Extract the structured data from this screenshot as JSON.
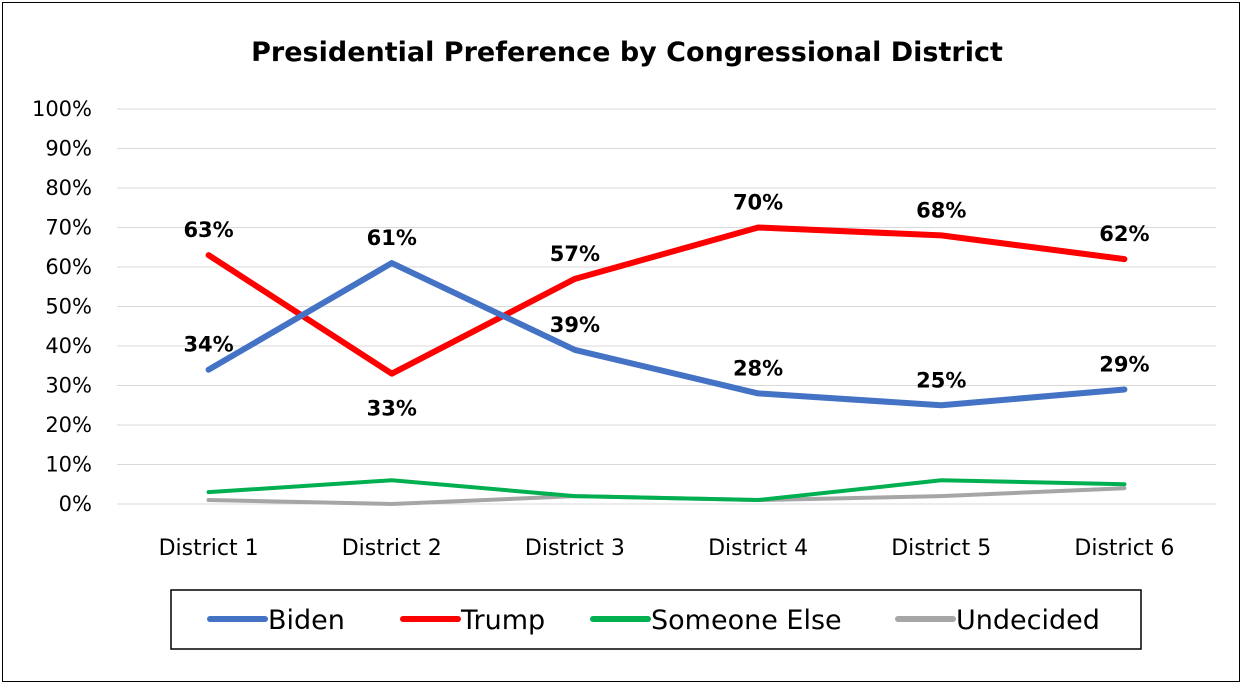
{
  "chart_data": {
    "type": "line",
    "title": "Presidential Preference by Congressional District",
    "categories": [
      "District 1",
      "District 2",
      "District 3",
      "District 4",
      "District 5",
      "District 6"
    ],
    "yticks": [
      "0%",
      "10%",
      "20%",
      "30%",
      "40%",
      "50%",
      "60%",
      "70%",
      "80%",
      "90%",
      "100%"
    ],
    "ylim": [
      0,
      100
    ],
    "grid": true,
    "legend_position": "bottom",
    "series": [
      {
        "name": "Biden",
        "color": "#4472C4",
        "width": 6,
        "values": [
          34,
          61,
          39,
          28,
          25,
          29
        ],
        "labels": [
          "34%",
          "61%",
          "39%",
          "28%",
          "25%",
          "29%"
        ],
        "label_position": [
          "above",
          "above",
          "above",
          "above",
          "above",
          "above"
        ]
      },
      {
        "name": "Trump",
        "color": "#FF0000",
        "width": 6,
        "values": [
          63,
          33,
          57,
          70,
          68,
          62
        ],
        "labels": [
          "63%",
          "33%",
          "57%",
          "70%",
          "68%",
          "62%"
        ],
        "label_position": [
          "above",
          "below",
          "above",
          "above",
          "above",
          "above"
        ]
      },
      {
        "name": "Someone Else",
        "color": "#00B050",
        "width": 4,
        "values": [
          3,
          6,
          2,
          1,
          6,
          5
        ]
      },
      {
        "name": "Undecided",
        "color": "#A6A6A6",
        "width": 4,
        "values": [
          1,
          0,
          2,
          1,
          2,
          4
        ]
      }
    ]
  }
}
